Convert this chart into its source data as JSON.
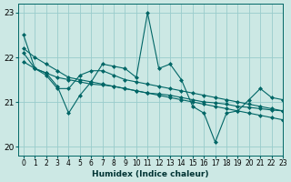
{
  "xlabel": "Humidex (Indice chaleur)",
  "bg_color": "#cce8e4",
  "grid_color": "#99cccc",
  "line_color": "#006666",
  "xlim": [
    -0.5,
    23
  ],
  "ylim": [
    19.8,
    23.2
  ],
  "yticks": [
    20,
    21,
    22,
    23
  ],
  "xticks": [
    0,
    1,
    2,
    3,
    4,
    5,
    6,
    7,
    8,
    9,
    10,
    11,
    12,
    13,
    14,
    15,
    16,
    17,
    18,
    19,
    20,
    21,
    22,
    23
  ],
  "series": [
    [
      22.5,
      21.75,
      21.65,
      21.35,
      20.75,
      21.15,
      21.45,
      21.85,
      21.8,
      21.75,
      21.55,
      23.0,
      21.75,
      21.85,
      21.5,
      20.9,
      20.75,
      20.1,
      20.75,
      20.8,
      21.05,
      21.3,
      21.1,
      21.05
    ],
    [
      22.1,
      21.75,
      21.6,
      21.3,
      21.3,
      21.6,
      21.7,
      21.7,
      21.6,
      21.5,
      21.45,
      21.4,
      21.35,
      21.3,
      21.25,
      21.2,
      21.15,
      21.1,
      21.05,
      21.0,
      20.95,
      20.9,
      20.85,
      20.8
    ],
    [
      22.2,
      22.0,
      21.85,
      21.7,
      21.55,
      21.5,
      21.45,
      21.4,
      21.35,
      21.3,
      21.25,
      21.2,
      21.15,
      21.1,
      21.05,
      21.0,
      20.95,
      20.9,
      20.85,
      20.8,
      20.75,
      20.7,
      20.65,
      20.6
    ],
    [
      21.9,
      21.75,
      21.65,
      21.55,
      21.5,
      21.45,
      21.4,
      21.38,
      21.35,
      21.3,
      21.25,
      21.2,
      21.18,
      21.15,
      21.1,
      21.05,
      21.0,
      20.98,
      20.95,
      20.9,
      20.88,
      20.85,
      20.82,
      20.8
    ]
  ]
}
